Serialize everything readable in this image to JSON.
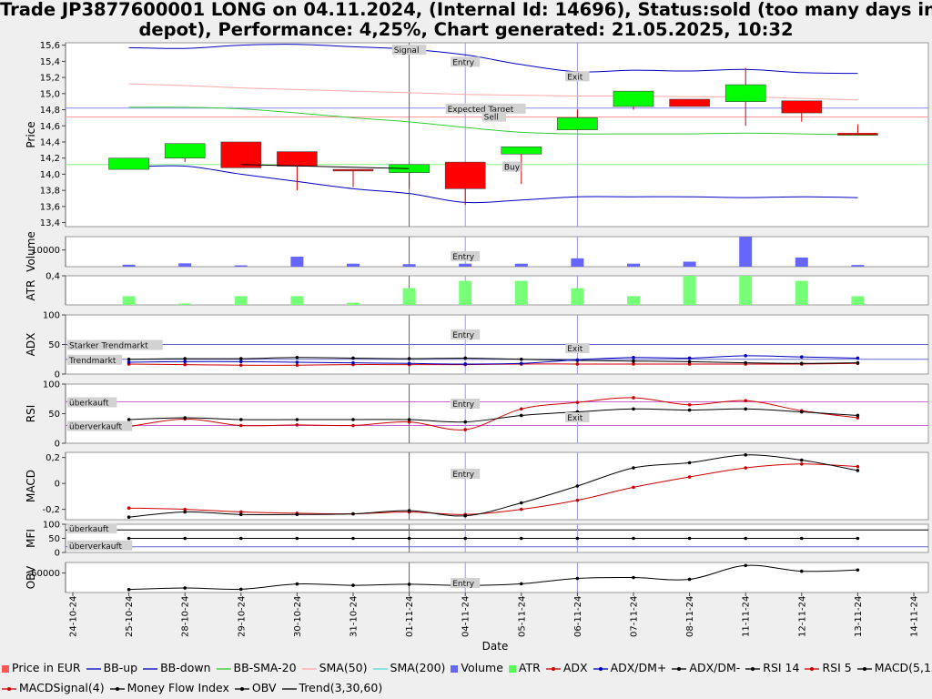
{
  "title_line1": "Trade JP3877600001 LONG on 04.11.2024, (Internal Id: 14696), Status:sold (too many days in",
  "title_line2": "depot), Performance: 4,25%, Chart generated: 21.05.2025, 10:32",
  "colors": {
    "up": "#00ff00",
    "down": "#ff0000",
    "bb": "#0000c0",
    "sma20": "#33cc33",
    "sma50": "#ffaaaa",
    "volume": "#6666ff",
    "atr": "#77ff77",
    "adx": "#cc0000",
    "black": "#000000"
  },
  "chart_data": {
    "type": "candlestick",
    "dates": [
      "24-10-24",
      "25-10-24",
      "28-10-24",
      "29-10-24",
      "30-10-24",
      "31-10-24",
      "01-11-24",
      "04-11-24",
      "05-11-24",
      "06-11-24",
      "07-11-24",
      "08-11-24",
      "11-11-24",
      "12-11-24",
      "13-11-24",
      "14-11-24"
    ],
    "xlabel": "Date",
    "price": {
      "ylabel": "Price",
      "ylim": [
        13.35,
        15.63
      ],
      "ticks": [
        "13,4",
        "13,6",
        "13,8",
        "14,0",
        "14,2",
        "14,4",
        "14,6",
        "14,8",
        "15,0",
        "15,2",
        "15,4",
        "15,6"
      ],
      "tick_values": [
        13.4,
        13.6,
        13.8,
        14.0,
        14.2,
        14.4,
        14.6,
        14.8,
        15.0,
        15.2,
        15.4,
        15.6
      ],
      "candles": [
        {
          "i": 1,
          "o": 14.06,
          "c": 14.2,
          "h": 14.2,
          "l": 14.06
        },
        {
          "i": 2,
          "o": 14.2,
          "c": 14.38,
          "h": 14.38,
          "l": 14.15
        },
        {
          "i": 3,
          "o": 14.4,
          "c": 14.08,
          "h": 14.4,
          "l": 14.08
        },
        {
          "i": 4,
          "o": 14.28,
          "c": 14.1,
          "h": 14.28,
          "l": 13.8
        },
        {
          "i": 5,
          "o": 14.06,
          "c": 14.04,
          "h": 14.06,
          "l": 13.84
        },
        {
          "i": 6,
          "o": 14.02,
          "c": 14.12,
          "h": 14.12,
          "l": 13.82
        },
        {
          "i": 7,
          "o": 14.15,
          "c": 13.82,
          "h": 14.15,
          "l": 13.62
        },
        {
          "i": 8,
          "o": 14.25,
          "c": 14.34,
          "h": 14.34,
          "l": 13.88
        },
        {
          "i": 9,
          "o": 14.55,
          "c": 14.7,
          "h": 14.8,
          "l": 14.55
        },
        {
          "i": 10,
          "o": 14.84,
          "c": 15.03,
          "h": 15.03,
          "l": 14.8
        },
        {
          "i": 11,
          "o": 14.93,
          "c": 14.84,
          "h": 14.93,
          "l": 14.84
        },
        {
          "i": 12,
          "o": 14.9,
          "c": 15.11,
          "h": 15.32,
          "l": 14.6
        },
        {
          "i": 13,
          "o": 14.91,
          "c": 14.76,
          "h": 14.91,
          "l": 14.65
        },
        {
          "i": 14,
          "o": 14.5,
          "c": 14.5,
          "h": 14.62,
          "l": 14.48
        }
      ],
      "bb_up": [
        [
          1,
          15.57
        ],
        [
          2,
          15.56
        ],
        [
          3,
          15.6
        ],
        [
          4,
          15.61
        ],
        [
          5,
          15.58
        ],
        [
          6,
          15.55
        ],
        [
          7,
          15.48
        ],
        [
          8,
          15.36
        ],
        [
          9,
          15.27
        ],
        [
          10,
          15.29
        ],
        [
          11,
          15.28
        ],
        [
          12,
          15.3
        ],
        [
          13,
          15.26
        ],
        [
          14,
          15.25
        ]
      ],
      "bb_down": [
        [
          1,
          14.09
        ],
        [
          2,
          14.1
        ],
        [
          3,
          14.0
        ],
        [
          4,
          13.91
        ],
        [
          5,
          13.82
        ],
        [
          6,
          13.76
        ],
        [
          7,
          13.65
        ],
        [
          8,
          13.68
        ],
        [
          9,
          13.72
        ],
        [
          10,
          13.72
        ],
        [
          11,
          13.72
        ],
        [
          12,
          13.71
        ],
        [
          13,
          13.72
        ],
        [
          14,
          13.71
        ]
      ],
      "bb_sma20": [
        [
          1,
          14.83
        ],
        [
          2,
          14.83
        ],
        [
          3,
          14.81
        ],
        [
          4,
          14.76
        ],
        [
          5,
          14.7
        ],
        [
          6,
          14.65
        ],
        [
          7,
          14.58
        ],
        [
          8,
          14.52
        ],
        [
          9,
          14.5
        ],
        [
          10,
          14.5
        ],
        [
          11,
          14.5
        ],
        [
          12,
          14.51
        ],
        [
          13,
          14.5
        ],
        [
          14,
          14.49
        ]
      ],
      "sma50": [
        [
          1,
          15.12
        ],
        [
          2,
          15.1
        ],
        [
          3,
          15.07
        ],
        [
          4,
          15.05
        ],
        [
          5,
          15.03
        ],
        [
          6,
          15.01
        ],
        [
          7,
          14.99
        ],
        [
          8,
          14.98
        ],
        [
          9,
          14.97
        ],
        [
          10,
          14.97
        ],
        [
          11,
          14.96
        ],
        [
          12,
          14.96
        ],
        [
          13,
          14.94
        ],
        [
          14,
          14.92
        ]
      ],
      "trend": [
        [
          3,
          14.12
        ],
        [
          6,
          14.07
        ]
      ],
      "hlines": [
        {
          "name": "Expected Target",
          "value": 14.82,
          "color": "#8888ff"
        },
        {
          "name": "Sell",
          "value": 14.71,
          "color": "#ff9999"
        },
        {
          "name": "Buy",
          "value": 14.12,
          "color": "#88ee88"
        }
      ],
      "close_marker": {
        "i": 14,
        "value": 14.5
      },
      "annotations": [
        {
          "text": "Signal",
          "i": 6,
          "value": 15.55
        },
        {
          "text": "Entry",
          "i": 7,
          "value": 15.4
        },
        {
          "text": "Exit",
          "i": 9,
          "value": 15.22
        },
        {
          "text": "Expected Target",
          "i": 6.65,
          "value": 14.82
        },
        {
          "text": "Sell",
          "i": 7.3,
          "value": 14.72
        },
        {
          "text": "Buy",
          "i": 7.66,
          "value": 14.1
        }
      ]
    },
    "volume": {
      "ylabel": "Volume",
      "ylim": [
        0,
        18000
      ],
      "ticks": [
        "10000"
      ],
      "tick_values": [
        10000
      ],
      "values": [
        [
          1,
          1200
        ],
        [
          2,
          2000
        ],
        [
          3,
          800
        ],
        [
          4,
          6000
        ],
        [
          5,
          1800
        ],
        [
          6,
          1500
        ],
        [
          7,
          1800
        ],
        [
          8,
          1800
        ],
        [
          9,
          5000
        ],
        [
          10,
          1800
        ],
        [
          11,
          3000
        ],
        [
          12,
          18000
        ],
        [
          13,
          5500
        ],
        [
          14,
          1000
        ]
      ],
      "annotation": "Entry"
    },
    "atr": {
      "ylabel": "ATR",
      "ylim": [
        0,
        0.4
      ],
      "ticks": [
        "0,4"
      ],
      "tick_values": [
        0.4
      ],
      "values": [
        [
          1,
          0.12
        ],
        [
          2,
          0.02
        ],
        [
          3,
          0.12
        ],
        [
          4,
          0.12
        ],
        [
          5,
          0.03
        ],
        [
          6,
          0.23
        ],
        [
          7,
          0.33
        ],
        [
          8,
          0.33
        ],
        [
          9,
          0.23
        ],
        [
          10,
          0.12
        ],
        [
          11,
          0.41
        ],
        [
          12,
          0.41
        ],
        [
          13,
          0.33
        ],
        [
          14,
          0.12
        ]
      ]
    },
    "adx": {
      "ylabel": "ADX",
      "ylim": [
        0,
        100
      ],
      "ticks": [
        "0",
        "50",
        "100"
      ],
      "tick_values": [
        0,
        50,
        100
      ],
      "hlines": [
        {
          "name": "Starker Trendmarkt",
          "value": 50
        },
        {
          "name": "Trendmarkt",
          "value": 25
        }
      ],
      "adx": [
        [
          1,
          17
        ],
        [
          2,
          16
        ],
        [
          3,
          15
        ],
        [
          4,
          15
        ],
        [
          5,
          16
        ],
        [
          6,
          16
        ],
        [
          7,
          16
        ],
        [
          8,
          17
        ],
        [
          9,
          17
        ],
        [
          10,
          17
        ],
        [
          11,
          17
        ],
        [
          12,
          17
        ],
        [
          13,
          17
        ],
        [
          14,
          18
        ]
      ],
      "dm_plus": [
        [
          1,
          20
        ],
        [
          2,
          21
        ],
        [
          3,
          21
        ],
        [
          4,
          20
        ],
        [
          5,
          19
        ],
        [
          6,
          18
        ],
        [
          7,
          17
        ],
        [
          8,
          18
        ],
        [
          9,
          24
        ],
        [
          10,
          28
        ],
        [
          11,
          27
        ],
        [
          12,
          31
        ],
        [
          13,
          29
        ],
        [
          14,
          27
        ]
      ],
      "dm_minus": [
        [
          1,
          25
        ],
        [
          2,
          26
        ],
        [
          3,
          26
        ],
        [
          4,
          28
        ],
        [
          5,
          27
        ],
        [
          6,
          26
        ],
        [
          7,
          27
        ],
        [
          8,
          25
        ],
        [
          9,
          23
        ],
        [
          10,
          22
        ],
        [
          11,
          21
        ],
        [
          12,
          19
        ],
        [
          13,
          18
        ],
        [
          14,
          19
        ]
      ],
      "annotations": [
        "Entry",
        "Exit"
      ]
    },
    "rsi": {
      "ylabel": "RSI",
      "ylim": [
        0,
        100
      ],
      "ticks": [
        "0",
        "50",
        "100"
      ],
      "tick_values": [
        0,
        50,
        100
      ],
      "hlines": [
        {
          "name": "überkauft",
          "value": 70
        },
        {
          "name": "überverkauft",
          "value": 30
        }
      ],
      "rsi14": [
        [
          1,
          40
        ],
        [
          2,
          43
        ],
        [
          3,
          40
        ],
        [
          4,
          40
        ],
        [
          5,
          40
        ],
        [
          6,
          40
        ],
        [
          7,
          36
        ],
        [
          8,
          47
        ],
        [
          9,
          53
        ],
        [
          10,
          58
        ],
        [
          11,
          56
        ],
        [
          12,
          58
        ],
        [
          13,
          53
        ],
        [
          14,
          47
        ]
      ],
      "rsi5": [
        [
          1,
          28
        ],
        [
          2,
          41
        ],
        [
          3,
          30
        ],
        [
          4,
          31
        ],
        [
          5,
          30
        ],
        [
          6,
          36
        ],
        [
          7,
          23
        ],
        [
          8,
          58
        ],
        [
          9,
          69
        ],
        [
          10,
          77
        ],
        [
          11,
          65
        ],
        [
          12,
          72
        ],
        [
          13,
          55
        ],
        [
          14,
          43
        ]
      ],
      "annotations": [
        "Entry",
        "Exit"
      ]
    },
    "macd": {
      "ylabel": "MACD",
      "ylim": [
        -0.28,
        0.24
      ],
      "ticks": [
        "-0,2",
        "0",
        "0,2"
      ],
      "tick_values": [
        -0.2,
        0,
        0.2
      ],
      "macd": [
        [
          1,
          -0.26
        ],
        [
          2,
          -0.22
        ],
        [
          3,
          -0.24
        ],
        [
          4,
          -0.24
        ],
        [
          5,
          -0.235
        ],
        [
          6,
          -0.21
        ],
        [
          7,
          -0.25
        ],
        [
          8,
          -0.15
        ],
        [
          9,
          -0.02
        ],
        [
          10,
          0.12
        ],
        [
          11,
          0.16
        ],
        [
          12,
          0.22
        ],
        [
          13,
          0.18
        ],
        [
          14,
          0.1
        ]
      ],
      "signal": [
        [
          1,
          -0.19
        ],
        [
          2,
          -0.2
        ],
        [
          3,
          -0.22
        ],
        [
          4,
          -0.23
        ],
        [
          5,
          -0.235
        ],
        [
          6,
          -0.22
        ],
        [
          7,
          -0.24
        ],
        [
          8,
          -0.2
        ],
        [
          9,
          -0.13
        ],
        [
          10,
          -0.03
        ],
        [
          11,
          0.05
        ],
        [
          12,
          0.12
        ],
        [
          13,
          0.15
        ],
        [
          14,
          0.13
        ]
      ],
      "annotation": "Entry"
    },
    "mfi": {
      "ylabel": "MFI",
      "ylim": [
        0,
        100
      ],
      "ticks": [
        "0",
        "50",
        "100"
      ],
      "tick_values": [
        0,
        50,
        100
      ],
      "hlines": [
        {
          "name": "überkauft",
          "value": 80
        },
        {
          "name": "überverkauft",
          "value": 20
        }
      ],
      "values": [
        [
          1,
          50
        ],
        [
          2,
          50
        ],
        [
          3,
          50
        ],
        [
          4,
          50
        ],
        [
          5,
          50
        ],
        [
          6,
          50
        ],
        [
          7,
          50
        ],
        [
          8,
          50
        ],
        [
          9,
          50
        ],
        [
          10,
          50
        ],
        [
          11,
          50
        ],
        [
          12,
          50
        ],
        [
          13,
          50
        ],
        [
          14,
          50
        ]
      ]
    },
    "obv": {
      "ylabel": "OBV",
      "ylim": [
        -73000,
        -53000
      ],
      "ticks": [
        "-60000"
      ],
      "tick_values": [
        -60000
      ],
      "values": [
        [
          1,
          -71000
        ],
        [
          2,
          -70000
        ],
        [
          3,
          -70800
        ],
        [
          4,
          -67300
        ],
        [
          5,
          -68200
        ],
        [
          6,
          -67500
        ],
        [
          7,
          -68400
        ],
        [
          8,
          -67200
        ],
        [
          9,
          -63600
        ],
        [
          10,
          -63000
        ],
        [
          11,
          -64200
        ],
        [
          12,
          -55000
        ],
        [
          13,
          -58800
        ],
        [
          14,
          -58000
        ]
      ],
      "annotation": "Entry"
    }
  },
  "legend": {
    "row1": [
      {
        "label": "Price in EUR",
        "kind": "box",
        "color": "#ff5555"
      },
      {
        "label": "BB-up",
        "kind": "line",
        "color": "#0000c0"
      },
      {
        "label": "BB-down",
        "kind": "line",
        "color": "#0000c0"
      },
      {
        "label": "BB-SMA-20",
        "kind": "line",
        "color": "#33cc33"
      },
      {
        "label": "SMA(50)",
        "kind": "line",
        "color": "#ffaaaa"
      },
      {
        "label": "SMA(200)",
        "kind": "line",
        "color": "#55dddd"
      },
      {
        "label": "Volume",
        "kind": "box",
        "color": "#6666ff"
      },
      {
        "label": "ATR",
        "kind": "box",
        "color": "#55ff55"
      },
      {
        "label": "ADX",
        "kind": "dotline",
        "color": "#cc0000"
      },
      {
        "label": "ADX/DM+",
        "kind": "dotline",
        "color": "#0000c0"
      },
      {
        "label": "ADX/DM-",
        "kind": "dotline",
        "color": "#000000"
      },
      {
        "label": "RSI 14",
        "kind": "dotline",
        "color": "#000000"
      },
      {
        "label": "RSI 5",
        "kind": "dotline",
        "color": "#cc0000"
      },
      {
        "label": "MACD(5,13)",
        "kind": "dotline",
        "color": "#000000"
      }
    ],
    "row2": [
      {
        "label": "MACDSignal(4)",
        "kind": "dotline",
        "color": "#cc0000"
      },
      {
        "label": "Money Flow Index",
        "kind": "dotline",
        "color": "#000000"
      },
      {
        "label": "OBV",
        "kind": "dotline",
        "color": "#000000"
      },
      {
        "label": "Trend(3,30,60)",
        "kind": "line",
        "color": "#000000"
      }
    ]
  }
}
